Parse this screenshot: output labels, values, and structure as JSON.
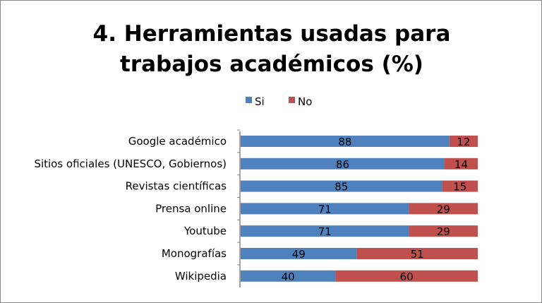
{
  "chart_data": {
    "type": "bar",
    "orientation": "horizontal",
    "stacked": true,
    "title_lines": [
      "4. Herramientas usadas para",
      "trabajos académicos (%)"
    ],
    "categories": [
      "Google académico",
      "Sitios oficiales (UNESCO, Gobiernos)",
      "Revistas científicas",
      "Prensa online",
      "Youtube",
      "Monografías",
      "Wikipedia"
    ],
    "series": [
      {
        "name": "Si",
        "color": "#4F81BD",
        "values": [
          88,
          86,
          85,
          71,
          71,
          49,
          40
        ]
      },
      {
        "name": "No",
        "color": "#C0504D",
        "values": [
          12,
          14,
          15,
          29,
          29,
          51,
          60
        ]
      }
    ],
    "xlim": [
      0,
      100
    ],
    "grid": false,
    "data_labels": true,
    "legend_position": "top"
  }
}
